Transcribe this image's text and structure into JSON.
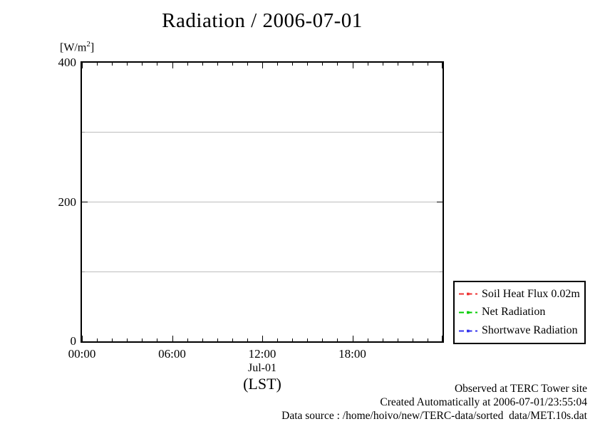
{
  "chart_data": {
    "type": "line",
    "title": "Radiation / 2006-07-01",
    "ylabel_unit_prefix": "[W/m",
    "ylabel_unit_sup": "2",
    "ylabel_unit_suffix": "]",
    "xlabel_date": "Jul-01",
    "xlabel_timezone": "(LST)",
    "x_range_hours": [
      0,
      24
    ],
    "x_major_tick_hours": 6,
    "x_minor_tick_hours": 1,
    "x_tick_labels": [
      {
        "hour": 0,
        "label": "00:00"
      },
      {
        "hour": 6,
        "label": "06:00"
      },
      {
        "hour": 12,
        "label": "12:00"
      },
      {
        "hour": 18,
        "label": "18:00"
      }
    ],
    "ylim": [
      0,
      400
    ],
    "y_tick_labels": [
      {
        "value": 0,
        "label": "0"
      },
      {
        "value": 200,
        "label": "200"
      },
      {
        "value": 400,
        "label": "400"
      }
    ],
    "y_minor_tick_values": [
      100,
      300
    ],
    "grid_y_values": [
      100,
      200,
      300
    ],
    "grid_color": "#bdbdbd",
    "legend_position": "bottom-right-outside",
    "series": [
      {
        "name": "Soil Heat Flux 0.02m",
        "color": "#ee3333",
        "style": "dashed-with-points",
        "values": []
      },
      {
        "name": "Net Radiation",
        "color": "#00cc00",
        "style": "dashed-with-points",
        "values": []
      },
      {
        "name": "Shortwave Radiation",
        "color": "#3333ee",
        "style": "dashed-with-points",
        "values": []
      }
    ],
    "visible_data_points": "none"
  },
  "footer": {
    "line1": "Observed at TERC Tower site",
    "line2": "Created Automatically at 2006-07-01/23:55:04",
    "line3": "Data source : /home/hoivo/new/TERC-data/sorted  data/MET.10s.dat"
  }
}
